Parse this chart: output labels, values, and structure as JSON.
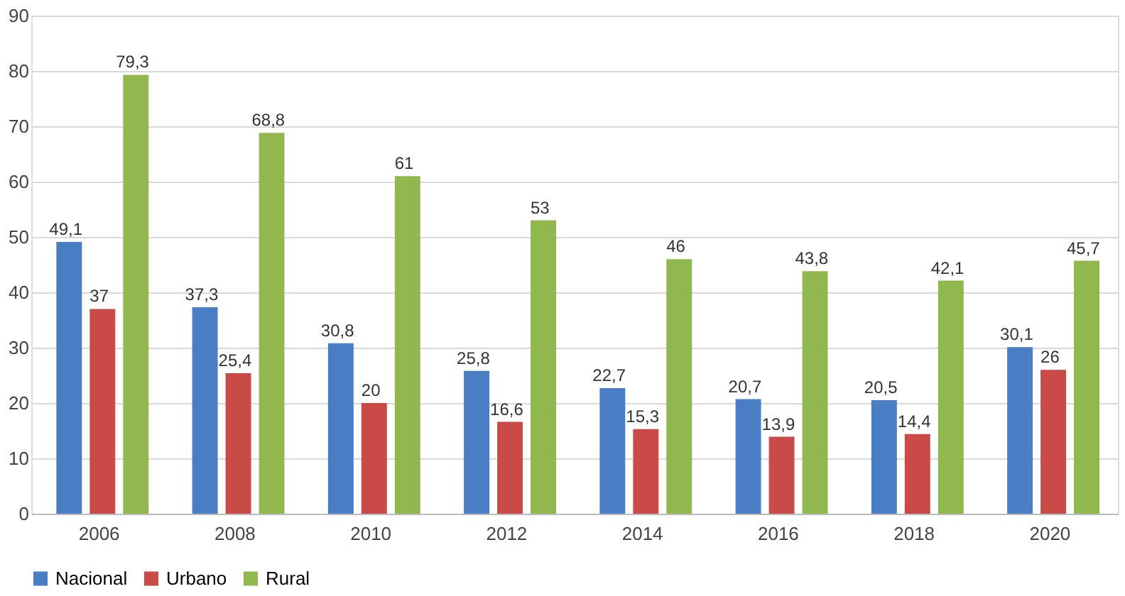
{
  "chart_data": {
    "type": "bar",
    "categories": [
      "2006",
      "2008",
      "2010",
      "2012",
      "2014",
      "2016",
      "2018",
      "2020"
    ],
    "series": [
      {
        "name": "Nacional",
        "color": "#4a7ec4",
        "values": [
          49.1,
          37.3,
          30.8,
          25.8,
          22.7,
          20.7,
          20.5,
          30.1
        ],
        "value_labels": [
          "49,1",
          "37,3",
          "30,8",
          "25,8",
          "22,7",
          "20,7",
          "20,5",
          "30,1"
        ]
      },
      {
        "name": "Urbano",
        "color": "#c94a46",
        "values": [
          37,
          25.4,
          20,
          16.6,
          15.3,
          13.9,
          14.4,
          26
        ],
        "value_labels": [
          "37",
          "25,4",
          "20",
          "16,6",
          "15,3",
          "13,9",
          "14,4",
          "26"
        ]
      },
      {
        "name": "Rural",
        "color": "#90b84e",
        "values": [
          79.3,
          68.8,
          61,
          53,
          46,
          43.8,
          42.1,
          45.7
        ],
        "value_labels": [
          "79,3",
          "68,8",
          "61",
          "53",
          "46",
          "43,8",
          "42,1",
          "45,7"
        ]
      }
    ],
    "ylim": [
      0,
      90
    ],
    "yticks": [
      0,
      10,
      20,
      30,
      40,
      50,
      60,
      70,
      80,
      90
    ],
    "grid": "y",
    "legend": "bottom"
  }
}
